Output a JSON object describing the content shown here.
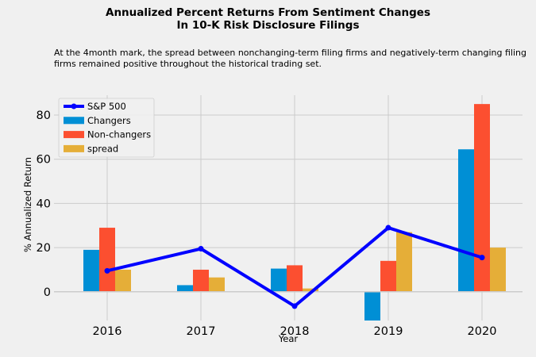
{
  "title_line1": "Annualized Percent Returns From Sentiment Changes",
  "title_line2": "In 10-K Risk Disclosure Filings",
  "subtitle": "At the 4month mark, the spread between nonchanging-term filing firms and negatively-term changing filing firms remained positive throughout the historical trading set.",
  "chart_data": {
    "type": "bar",
    "categories": [
      "2016",
      "2017",
      "2018",
      "2019",
      "2020"
    ],
    "xlabel": "Year",
    "ylabel": "% Annualized Return",
    "ylim": [
      -13,
      89
    ],
    "yticks": [
      0,
      20,
      40,
      60,
      80
    ],
    "grid": true,
    "legend_position": "top-left",
    "series": [
      {
        "name": "Changers",
        "kind": "bar",
        "color": "#008fd5",
        "values": [
          19,
          3,
          10.5,
          -13,
          64.5
        ]
      },
      {
        "name": "Non-changers",
        "kind": "bar",
        "color": "#fc4f30",
        "values": [
          29,
          10,
          12,
          14,
          85
        ]
      },
      {
        "name": "spread",
        "kind": "bar",
        "color": "#e5ae38",
        "values": [
          10,
          6.5,
          1.5,
          27,
          20
        ]
      },
      {
        "name": "S&P 500",
        "kind": "line",
        "color": "#0000ff",
        "values": [
          9.5,
          19.5,
          -6.5,
          29,
          15.5
        ]
      }
    ]
  }
}
